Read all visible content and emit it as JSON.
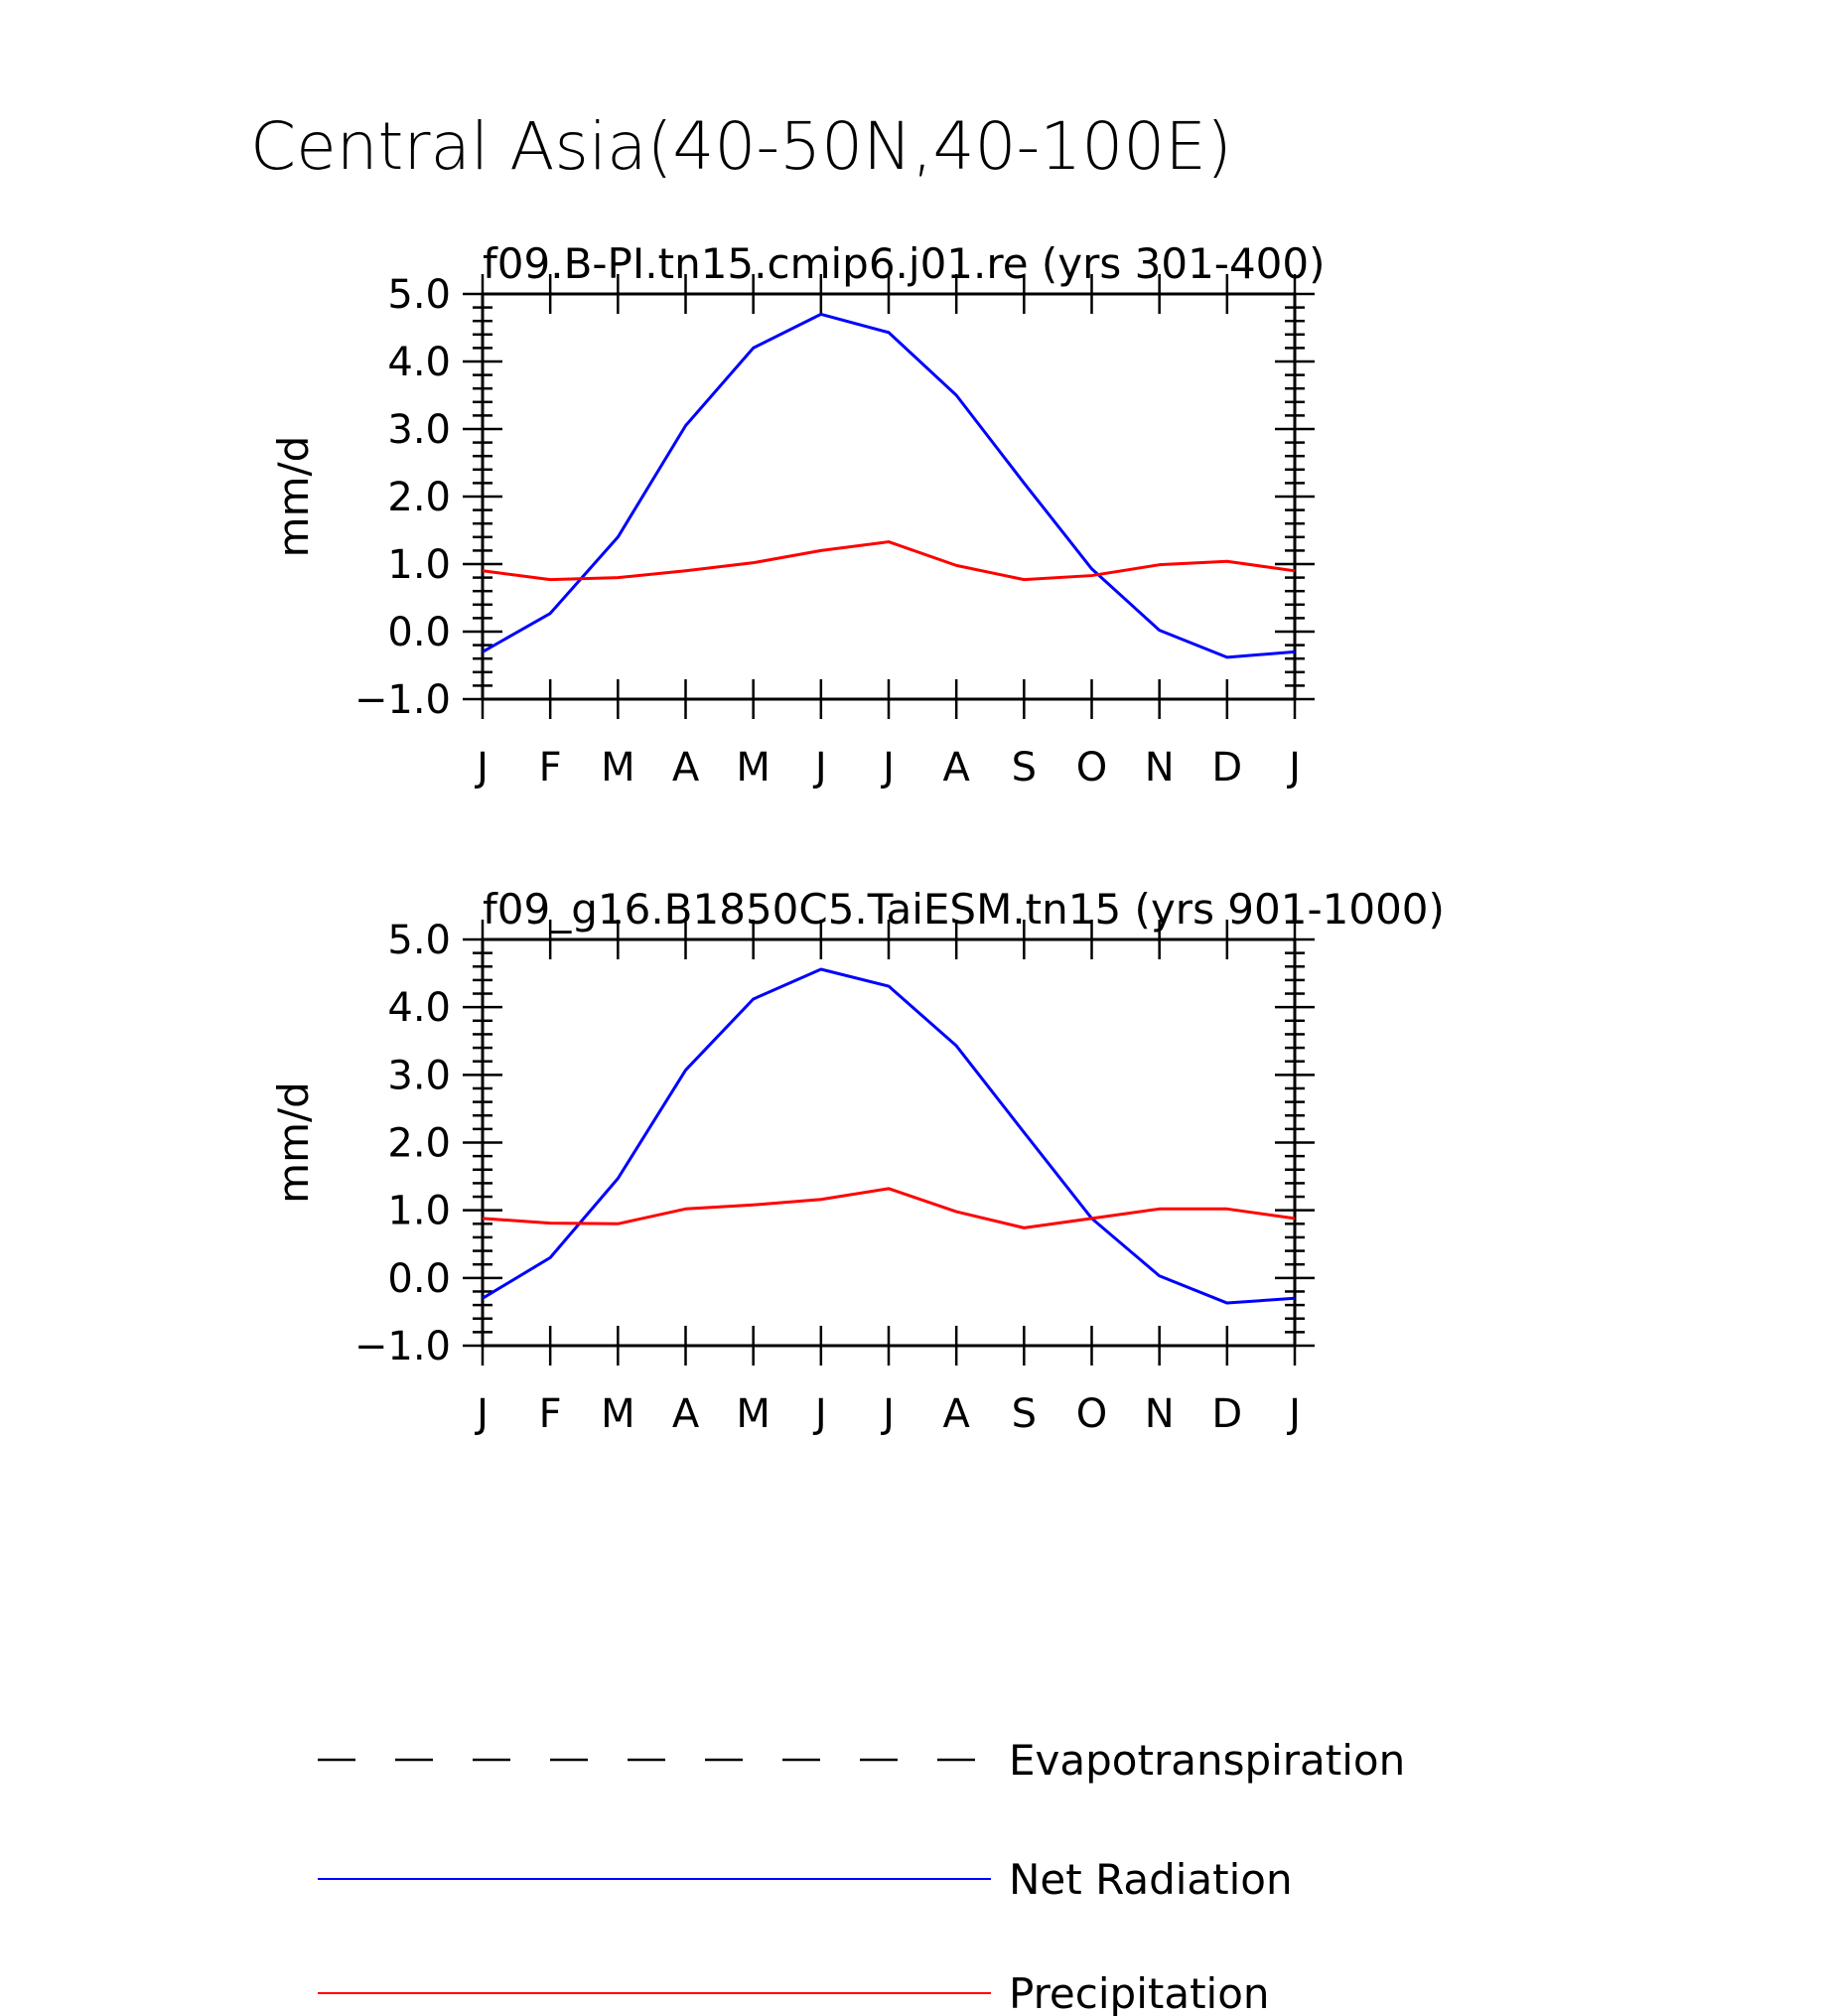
{
  "title": "Central Asia(40-50N,40-100E)",
  "chart_data": [
    {
      "type": "line",
      "title": "f09.B-PI.tn15.cmip6.j01.re (yrs 301-400)",
      "ylabel": "mm/d",
      "ylim": [
        -1.0,
        5.0
      ],
      "yticks": [
        "5.0",
        "4.0",
        "3.0",
        "2.0",
        "1.0",
        "0.0",
        "−1.0"
      ],
      "categories": [
        "J",
        "F",
        "M",
        "A",
        "M",
        "J",
        "J",
        "A",
        "S",
        "O",
        "N",
        "D",
        "J"
      ],
      "series": [
        {
          "name": "Net Radiation",
          "color": "#0000ff",
          "values": [
            -0.3,
            0.27,
            1.4,
            3.05,
            4.2,
            4.7,
            4.43,
            3.5,
            2.2,
            0.93,
            0.02,
            -0.38,
            -0.3
          ]
        },
        {
          "name": "Precipitation",
          "color": "#ff0000",
          "values": [
            0.9,
            0.77,
            0.8,
            0.9,
            1.02,
            1.2,
            1.33,
            0.98,
            0.77,
            0.83,
            0.99,
            1.04,
            0.9
          ]
        }
      ]
    },
    {
      "type": "line",
      "title": "f09_g16.B1850C5.TaiESM.tn15 (yrs 901-1000)",
      "ylabel": "mm/d",
      "ylim": [
        -1.0,
        5.0
      ],
      "yticks": [
        "5.0",
        "4.0",
        "3.0",
        "2.0",
        "1.0",
        "0.0",
        "−1.0"
      ],
      "categories": [
        "J",
        "F",
        "M",
        "A",
        "M",
        "J",
        "J",
        "A",
        "S",
        "O",
        "N",
        "D",
        "J"
      ],
      "series": [
        {
          "name": "Net Radiation",
          "color": "#0000ff",
          "values": [
            -0.3,
            0.3,
            1.47,
            3.07,
            4.12,
            4.56,
            4.31,
            3.43,
            2.15,
            0.88,
            0.03,
            -0.37,
            -0.3
          ]
        },
        {
          "name": "Precipitation",
          "color": "#ff0000",
          "values": [
            0.88,
            0.81,
            0.8,
            1.02,
            1.08,
            1.16,
            1.32,
            0.98,
            0.74,
            0.88,
            1.02,
            1.02,
            0.88
          ]
        }
      ]
    }
  ],
  "legend": [
    {
      "name": "Evapotranspiration",
      "color": "#000000",
      "style": "dashed"
    },
    {
      "name": "Net Radiation",
      "color": "#0000ff",
      "style": "solid"
    },
    {
      "name": "Precipitation",
      "color": "#ff0000",
      "style": "solid"
    }
  ]
}
